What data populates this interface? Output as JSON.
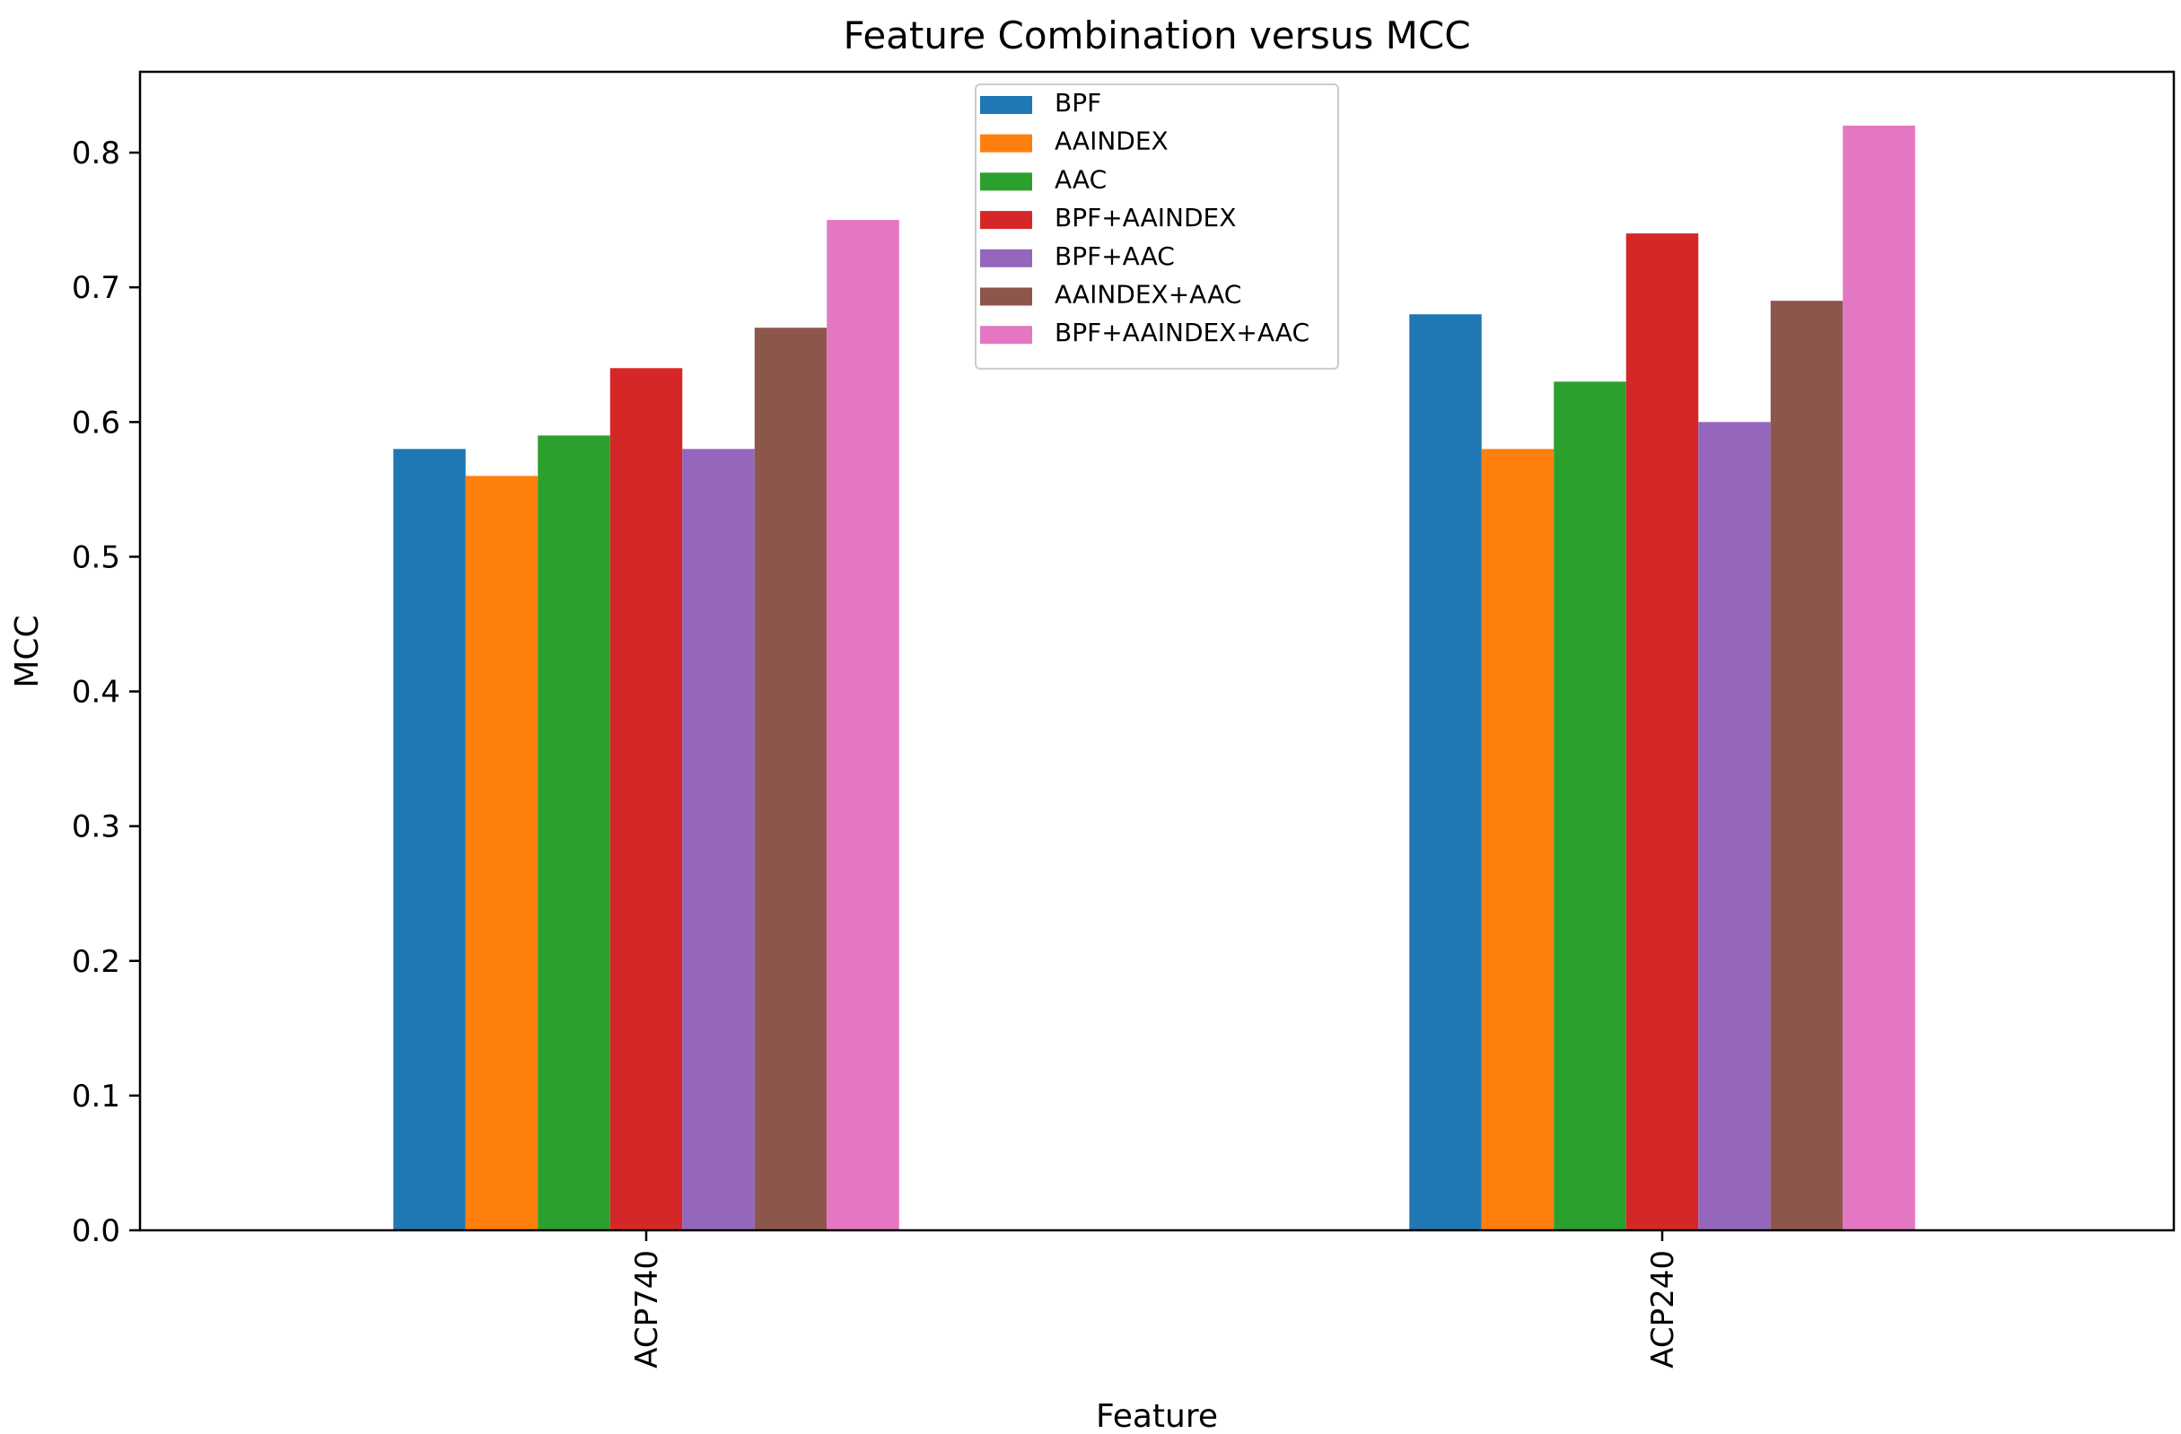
{
  "chart_data": {
    "type": "bar",
    "title": "Feature Combination versus MCC",
    "xlabel": "Feature",
    "ylabel": "MCC",
    "categories": [
      "ACP740",
      "ACP240"
    ],
    "ylim": [
      0,
      0.86
    ],
    "yticks": [
      0.0,
      0.1,
      0.2,
      0.3,
      0.4,
      0.5,
      0.6,
      0.7,
      0.8
    ],
    "ytick_labels": [
      "0.0",
      "0.1",
      "0.2",
      "0.3",
      "0.4",
      "0.5",
      "0.6",
      "0.7",
      "0.8"
    ],
    "grid": false,
    "legend_position": "top-center",
    "series": [
      {
        "name": "BPF",
        "color": "#1f77b4",
        "values": [
          0.58,
          0.68
        ]
      },
      {
        "name": "AAINDEX",
        "color": "#ff7f0e",
        "values": [
          0.56,
          0.58
        ]
      },
      {
        "name": "AAC",
        "color": "#2ca02c",
        "values": [
          0.59,
          0.63
        ]
      },
      {
        "name": "BPF+AAINDEX",
        "color": "#d62728",
        "values": [
          0.64,
          0.74
        ]
      },
      {
        "name": "BPF+AAC",
        "color": "#9467bd",
        "values": [
          0.58,
          0.6
        ]
      },
      {
        "name": "AAINDEX+AAC",
        "color": "#8c564b",
        "values": [
          0.67,
          0.69
        ]
      },
      {
        "name": "BPF+AAINDEX+AAC",
        "color": "#e377c2",
        "values": [
          0.75,
          0.82
        ]
      }
    ]
  }
}
